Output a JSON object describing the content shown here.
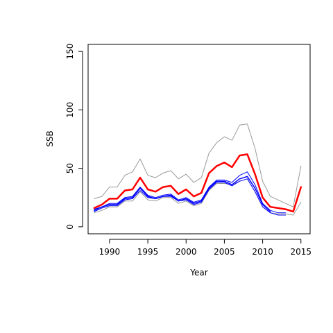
{
  "chart_data": {
    "type": "line",
    "xlabel": "Year",
    "ylabel": "SSB",
    "xlim": [
      1987.2,
      2016.2
    ],
    "ylim": [
      -6,
      156
    ],
    "x_ticks": [
      1990,
      1995,
      2000,
      2005,
      2010,
      2015
    ],
    "y_ticks": [
      0,
      50,
      100,
      150
    ],
    "grid": false,
    "years": [
      1988,
      1989,
      1990,
      1991,
      1992,
      1993,
      1994,
      1995,
      1996,
      1997,
      1998,
      1999,
      2000,
      2001,
      2002,
      2003,
      2004,
      2005,
      2006,
      2007,
      2008,
      2009,
      2010,
      2011,
      2012,
      2013,
      2014,
      2015
    ],
    "series": [
      {
        "role": "grey-upper",
        "color": "#999999",
        "width": 1,
        "values": [
          24,
          26,
          34,
          34,
          44,
          47,
          58,
          44,
          42,
          46,
          48,
          41,
          45,
          38,
          42,
          63,
          72,
          77,
          74,
          87,
          88,
          67,
          39,
          26,
          23,
          20,
          17,
          52
        ]
      },
      {
        "role": "grey-lower",
        "color": "#999999",
        "width": 1,
        "values": [
          12,
          14,
          17,
          17,
          22,
          22,
          30,
          23,
          22,
          25,
          25,
          20,
          22,
          18,
          20,
          31,
          37,
          37,
          36,
          39,
          41,
          30,
          17,
          12,
          11,
          11,
          10,
          21
        ]
      },
      {
        "role": "blue-upper",
        "color": "#0000ff",
        "width": 1,
        "values": [
          15,
          17,
          20,
          20,
          25,
          26,
          34,
          27,
          25,
          27,
          28,
          23,
          25,
          21,
          23,
          34,
          40,
          40,
          38,
          44,
          47,
          36,
          20,
          14,
          12,
          12,
          null,
          null
        ]
      },
      {
        "role": "blue-lower",
        "color": "#0000ff",
        "width": 1,
        "values": [
          13,
          16,
          18,
          18,
          23,
          24,
          31,
          25,
          24,
          26,
          26,
          22,
          23,
          19,
          21,
          32,
          38,
          38,
          35,
          39,
          41,
          30,
          17,
          12,
          10,
          10,
          null,
          null
        ]
      },
      {
        "role": "blue-main",
        "color": "#0000ff",
        "width": 1.5,
        "values": [
          14,
          17,
          19,
          19,
          24,
          25,
          33,
          26,
          24,
          26,
          27,
          22,
          24,
          20,
          22,
          33,
          39,
          39,
          36,
          41,
          43,
          33,
          19,
          13,
          null,
          null,
          null,
          null
        ]
      },
      {
        "role": "red-main",
        "color": "#ff0000",
        "width": 2.5,
        "values": [
          16,
          19,
          24,
          24,
          31,
          32,
          42,
          32,
          30,
          34,
          35,
          28,
          32,
          26,
          29,
          46,
          52,
          55,
          51,
          61,
          62,
          45,
          25,
          17,
          16,
          15,
          13,
          34
        ]
      }
    ]
  }
}
